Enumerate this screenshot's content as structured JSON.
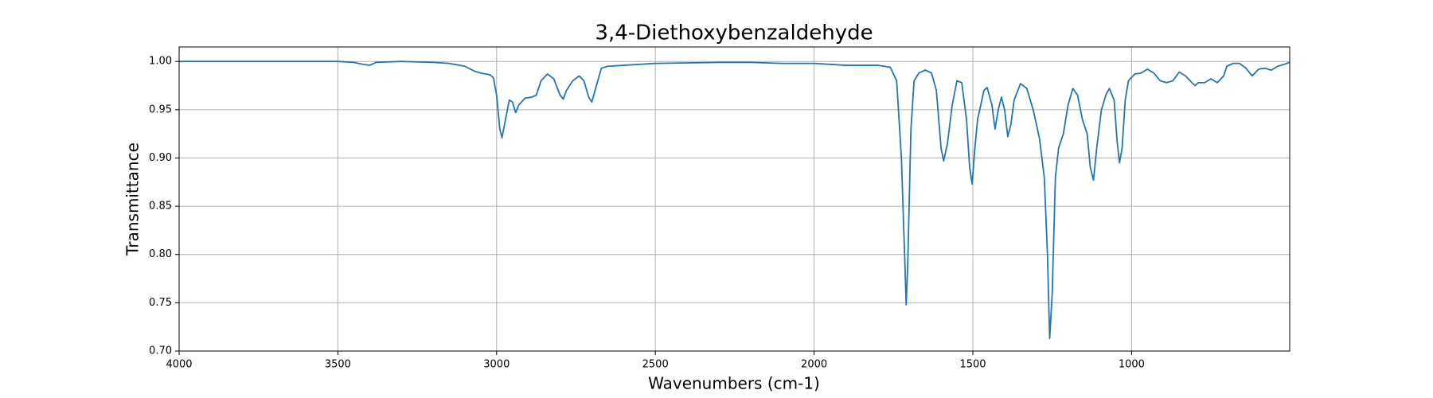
{
  "chart_data": {
    "type": "line",
    "title": "3,4-Diethoxybenzaldehyde",
    "x_label": "Wavenumbers (cm-1)",
    "y_label": "Transmittance",
    "color": "#1f77b4",
    "grid": true,
    "xlim": [
      4000,
      502
    ],
    "ylim": [
      0.7,
      1.015
    ],
    "xticks": [
      4000,
      3500,
      3000,
      2500,
      2000,
      1500,
      1000
    ],
    "yticks": [
      {
        "value": 0.7,
        "label": "0.70"
      },
      {
        "value": 0.75,
        "label": "0.75"
      },
      {
        "value": 0.8,
        "label": "0.80"
      },
      {
        "value": 0.85,
        "label": "0.85"
      },
      {
        "value": 0.9,
        "label": "0.90"
      },
      {
        "value": 0.95,
        "label": "0.95"
      },
      {
        "value": 1.0,
        "label": "1.00"
      }
    ],
    "x": [
      4000,
      3800,
      3600,
      3500,
      3450,
      3420,
      3400,
      3380,
      3300,
      3200,
      3150,
      3100,
      3070,
      3050,
      3020,
      3010,
      3000,
      2990,
      2983,
      2975,
      2960,
      2950,
      2940,
      2930,
      2910,
      2890,
      2875,
      2860,
      2840,
      2820,
      2800,
      2790,
      2780,
      2760,
      2740,
      2725,
      2710,
      2700,
      2690,
      2670,
      2650,
      2600,
      2500,
      2300,
      2200,
      2100,
      2000,
      1900,
      1800,
      1760,
      1740,
      1725,
      1715,
      1710,
      1705,
      1695,
      1685,
      1670,
      1650,
      1630,
      1615,
      1600,
      1592,
      1580,
      1565,
      1550,
      1535,
      1520,
      1510,
      1502,
      1495,
      1485,
      1475,
      1465,
      1455,
      1440,
      1430,
      1420,
      1410,
      1400,
      1390,
      1380,
      1370,
      1350,
      1330,
      1310,
      1290,
      1275,
      1265,
      1258,
      1250,
      1240,
      1230,
      1215,
      1200,
      1185,
      1170,
      1155,
      1140,
      1130,
      1120,
      1110,
      1095,
      1080,
      1070,
      1055,
      1045,
      1038,
      1030,
      1020,
      1010,
      990,
      970,
      950,
      930,
      910,
      890,
      870,
      850,
      830,
      810,
      800,
      790,
      770,
      750,
      730,
      710,
      700,
      680,
      660,
      640,
      620,
      600,
      580,
      560,
      540,
      520,
      502
    ],
    "values": [
      1.0,
      1.0,
      1.0,
      1.0,
      0.999,
      0.997,
      0.996,
      0.999,
      1.0,
      0.999,
      0.998,
      0.995,
      0.99,
      0.988,
      0.986,
      0.983,
      0.965,
      0.93,
      0.921,
      0.935,
      0.96,
      0.958,
      0.947,
      0.955,
      0.962,
      0.963,
      0.965,
      0.98,
      0.987,
      0.982,
      0.965,
      0.961,
      0.97,
      0.98,
      0.985,
      0.98,
      0.963,
      0.958,
      0.97,
      0.993,
      0.995,
      0.996,
      0.998,
      0.999,
      0.999,
      0.998,
      0.998,
      0.996,
      0.996,
      0.994,
      0.98,
      0.9,
      0.8,
      0.748,
      0.79,
      0.93,
      0.98,
      0.988,
      0.991,
      0.988,
      0.97,
      0.91,
      0.897,
      0.915,
      0.955,
      0.98,
      0.978,
      0.94,
      0.89,
      0.873,
      0.905,
      0.94,
      0.955,
      0.97,
      0.973,
      0.955,
      0.93,
      0.95,
      0.963,
      0.95,
      0.922,
      0.935,
      0.96,
      0.977,
      0.972,
      0.95,
      0.92,
      0.88,
      0.8,
      0.713,
      0.76,
      0.88,
      0.91,
      0.925,
      0.955,
      0.972,
      0.965,
      0.94,
      0.925,
      0.89,
      0.877,
      0.91,
      0.95,
      0.966,
      0.972,
      0.96,
      0.915,
      0.895,
      0.91,
      0.96,
      0.98,
      0.987,
      0.988,
      0.992,
      0.988,
      0.98,
      0.978,
      0.98,
      0.989,
      0.985,
      0.978,
      0.975,
      0.978,
      0.978,
      0.982,
      0.978,
      0.985,
      0.995,
      0.998,
      0.998,
      0.993,
      0.985,
      0.992,
      0.993,
      0.991,
      0.995,
      0.997,
      0.999
    ]
  }
}
